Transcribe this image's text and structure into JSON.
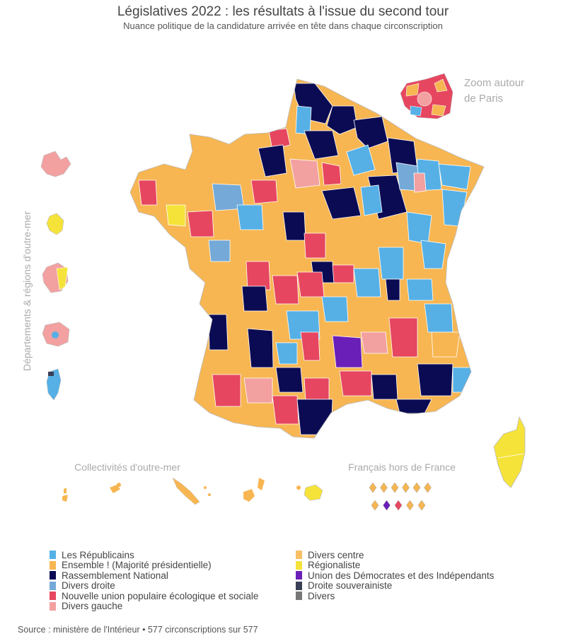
{
  "title": "Législatives 2022 : les résultats à l'issue du second tour",
  "subtitle": "Nuance politique de la candidature arrivée en tête dans chaque circonscription",
  "labels": {
    "paris_zoom_line1": "Zoom autour",
    "paris_zoom_line2": "de Paris",
    "drom": "Départements & régions d'outre-mer",
    "com": "Collectivités d'outre-mer",
    "abroad": "Français hors de France"
  },
  "legend": {
    "col1": [
      {
        "label": "Les Républicains",
        "color": "#56b0e6"
      },
      {
        "label": "Ensemble ! (Majorité présidentielle)",
        "color": "#f7b652"
      },
      {
        "label": "Rassemblement National",
        "color": "#0b0b54"
      },
      {
        "label": "Divers droite",
        "color": "#74a9d8"
      },
      {
        "label": "Nouvelle union populaire écologique et sociale",
        "color": "#e6465f"
      },
      {
        "label": "Divers gauche",
        "color": "#f3a0a0"
      }
    ],
    "col2": [
      {
        "label": "Divers centre",
        "color": "#f7c065"
      },
      {
        "label": "Régionaliste",
        "color": "#f5e33a"
      },
      {
        "label": "Union des Démocrates et des Indépendants",
        "color": "#6a1fb8"
      },
      {
        "label": "Droite souverainiste",
        "color": "#3a3f55"
      },
      {
        "label": "Divers",
        "color": "#777777"
      }
    ]
  },
  "abroad_colors": [
    "#f7b652",
    "#f7b652",
    "#f7b652",
    "#f7b652",
    "#f7b652",
    "#f7b652",
    "#f7b652",
    "#6a1fb8",
    "#e6465f",
    "#f7b652",
    "#f7b652"
  ],
  "source": "Source : ministère de l'Intérieur • 577 circonscriptions sur 577"
}
